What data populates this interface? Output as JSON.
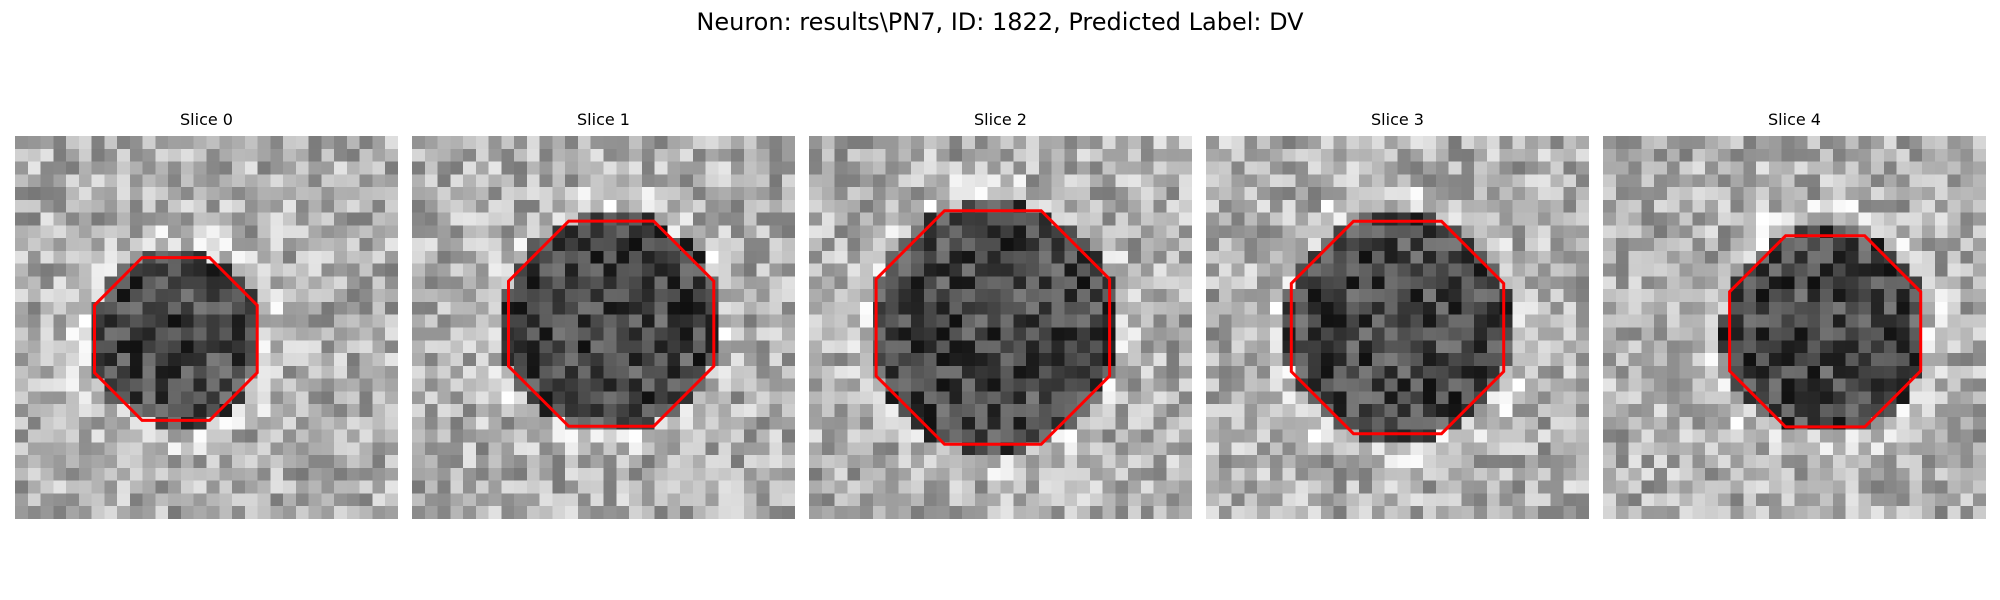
{
  "title": "Neuron: results\\PN7, ID: 1822, Predicted Label: DV",
  "slices": [
    {
      "label": "Slice 0",
      "roi_center": [
        0.42,
        0.53
      ],
      "roi_radius": 0.23,
      "seed": 11
    },
    {
      "label": "Slice 1",
      "roi_center": [
        0.52,
        0.49
      ],
      "roi_radius": 0.29,
      "seed": 23
    },
    {
      "label": "Slice 2",
      "roi_center": [
        0.48,
        0.5
      ],
      "roi_radius": 0.33,
      "seed": 37
    },
    {
      "label": "Slice 3",
      "roi_center": [
        0.5,
        0.5
      ],
      "roi_radius": 0.3,
      "seed": 41
    },
    {
      "label": "Slice 4",
      "roi_center": [
        0.58,
        0.51
      ],
      "roi_radius": 0.27,
      "seed": 53
    }
  ],
  "colors": {
    "roi_outline": "#ff0000",
    "background": "#ffffff"
  }
}
